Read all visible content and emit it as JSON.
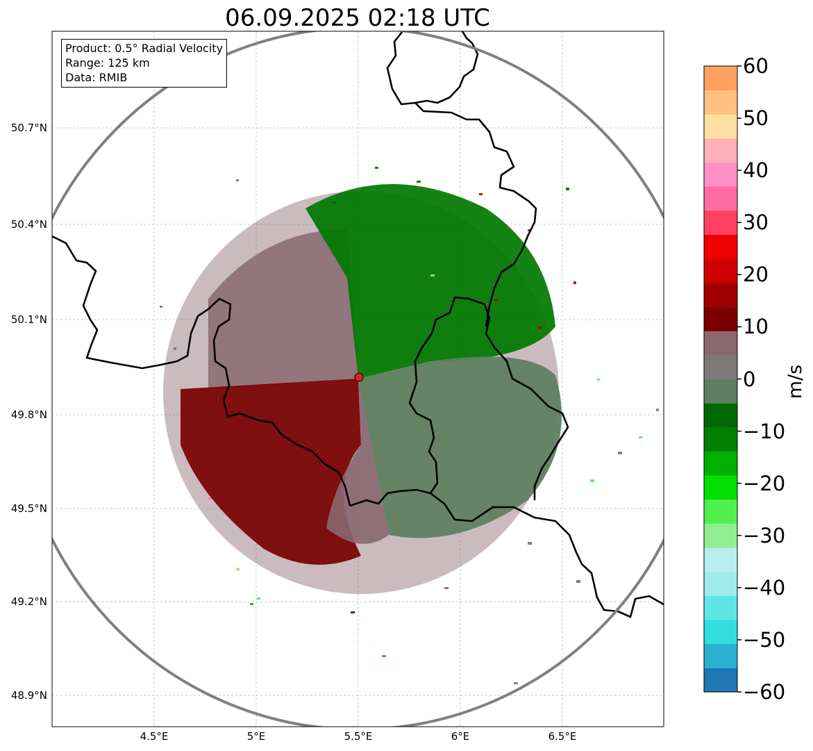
{
  "title": "06.09.2025 02:18 UTC",
  "info": {
    "product": "Product: 0.5° Radial Velocity",
    "range": "Range: 125 km",
    "source": "Data: RMIB"
  },
  "map": {
    "lat_ticks": [
      "50.7°N",
      "50.4°N",
      "50.1°N",
      "49.8°N",
      "49.5°N",
      "49.2°N",
      "48.9°N"
    ],
    "lon_ticks": [
      "4.5°E",
      "5°E",
      "5.5°E",
      "6°E",
      "6.5°E"
    ],
    "range_ring_km": 125,
    "radar_marker": "radar-site",
    "colors": {
      "ring": "#808080",
      "border": "#000000",
      "grid": "#b0b0b0",
      "inbound_strong": "#007000",
      "inbound_light": "#5f8060",
      "outbound_light": "#8a6870",
      "outbound_strong": "#7a0000",
      "marker": "#e02020"
    }
  },
  "colorbar": {
    "unit": "m/s",
    "min": -60,
    "max": 60,
    "ticks": [
      "60",
      "50",
      "40",
      "30",
      "20",
      "10",
      "0",
      "−10",
      "−20",
      "−30",
      "−40",
      "−50",
      "−60"
    ],
    "stops": [
      "#1f77b4",
      "#2ab0d0",
      "#30dede",
      "#60e6e6",
      "#a0ecec",
      "#b8eef0",
      "#90ee90",
      "#50f050",
      "#00e000",
      "#00b000",
      "#008000",
      "#006800",
      "#5f8060",
      "#7f7a78",
      "#8a6870",
      "#7a0000",
      "#a00000",
      "#d00000",
      "#f00000",
      "#ff4060",
      "#ff6aa0",
      "#ff90c8",
      "#ffb0b8",
      "#ffe0a0",
      "#ffc080",
      "#ffa060"
    ]
  }
}
